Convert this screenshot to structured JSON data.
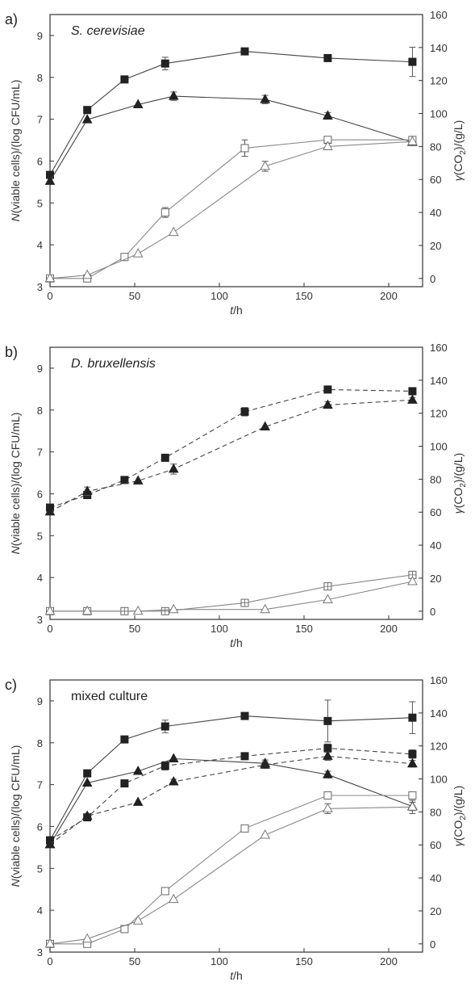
{
  "chart_data": [
    {
      "type": "line",
      "panel_label": "a)",
      "title": "S. cerevisiae",
      "title_italic": true,
      "xlabel": "t/h",
      "ylabel_left": "N(viable cells)/(log CFU/mL)",
      "ylabel_right": "γ(CO2)/(g/L)",
      "xlim": [
        0,
        220
      ],
      "xticks": [
        0,
        50,
        100,
        150,
        200
      ],
      "ylim_left": [
        3,
        9.5
      ],
      "yticks_left": [
        3,
        4,
        5,
        6,
        7,
        8,
        9
      ],
      "ylim_right": [
        -5,
        160
      ],
      "yticks_right": [
        0,
        20,
        40,
        60,
        80,
        100,
        120,
        140,
        160
      ],
      "grid": false,
      "series": [
        {
          "marker": "square-filled",
          "axis": "left",
          "line": "solid",
          "x": [
            0,
            22,
            44,
            68,
            115,
            164,
            214
          ],
          "y": [
            5.67,
            7.22,
            7.95,
            8.33,
            8.62,
            8.46,
            8.37
          ],
          "err": [
            0,
            0,
            0,
            0.15,
            0,
            0,
            0.35
          ]
        },
        {
          "marker": "triangle-filled",
          "axis": "left",
          "line": "solid",
          "x": [
            0,
            22,
            52,
            73,
            127,
            164,
            214
          ],
          "y": [
            5.52,
            6.99,
            7.35,
            7.55,
            7.47,
            7.08,
            6.45
          ],
          "err": [
            0,
            0,
            0,
            0.1,
            0.1,
            0.08,
            0
          ]
        },
        {
          "marker": "square-open",
          "axis": "right",
          "line": "solid",
          "x": [
            0,
            22,
            44,
            68,
            115,
            164,
            214
          ],
          "y": [
            0,
            0,
            13,
            40,
            79,
            84,
            84
          ],
          "err": [
            0,
            0,
            0,
            3,
            5,
            0,
            0
          ]
        },
        {
          "marker": "triangle-open",
          "axis": "right",
          "line": "solid",
          "x": [
            0,
            22,
            52,
            73,
            127,
            164,
            214
          ],
          "y": [
            0,
            2,
            15,
            28,
            68,
            80,
            83
          ],
          "err": [
            0,
            0,
            0,
            0,
            3,
            2,
            0
          ]
        }
      ]
    },
    {
      "type": "line",
      "panel_label": "b)",
      "title": "D. bruxellensis",
      "title_italic": true,
      "xlabel": "t/h",
      "ylabel_left": "N(viable cells)/(log CFU/mL)",
      "ylabel_right": "γ(CO2)/(g/L)",
      "xlim": [
        0,
        220
      ],
      "xticks": [
        0,
        50,
        100,
        150,
        200
      ],
      "ylim_left": [
        3,
        9.5
      ],
      "yticks_left": [
        3,
        4,
        5,
        6,
        7,
        8,
        9
      ],
      "ylim_right": [
        -5,
        160
      ],
      "yticks_right": [
        0,
        20,
        40,
        60,
        80,
        100,
        120,
        140,
        160
      ],
      "grid": false,
      "series": [
        {
          "marker": "square-filled",
          "axis": "left",
          "line": "dashed",
          "x": [
            0,
            22,
            44,
            68,
            115,
            164,
            214
          ],
          "y": [
            5.67,
            5.97,
            6.33,
            6.86,
            7.96,
            8.49,
            8.45
          ],
          "err": [
            0,
            0.06,
            0,
            0,
            0.1,
            0,
            0
          ]
        },
        {
          "marker": "triangle-filled",
          "axis": "left",
          "line": "dashed",
          "x": [
            0,
            22,
            52,
            73,
            127,
            164,
            214
          ],
          "y": [
            5.57,
            6.06,
            6.31,
            6.59,
            7.6,
            8.12,
            8.24
          ],
          "err": [
            0,
            0.1,
            0,
            0.12,
            0,
            0.08,
            0.06
          ]
        },
        {
          "marker": "square-cross",
          "axis": "right",
          "line": "solid",
          "x": [
            0,
            22,
            44,
            68,
            115,
            164,
            214
          ],
          "y": [
            0,
            0,
            0,
            0,
            5,
            15,
            22
          ],
          "err": [
            0,
            0,
            0,
            0,
            0,
            0,
            0
          ]
        },
        {
          "marker": "triangle-open",
          "axis": "right",
          "line": "solid",
          "x": [
            0,
            22,
            52,
            73,
            127,
            164,
            214
          ],
          "y": [
            0,
            0,
            0,
            1,
            1,
            7,
            18
          ],
          "err": [
            0,
            0,
            0,
            0,
            0,
            0,
            0
          ]
        }
      ]
    },
    {
      "type": "line",
      "panel_label": "c)",
      "title": "mixed culture",
      "title_italic": false,
      "xlabel": "t/h",
      "ylabel_left": "N(viable cells)/(log CFU/mL)",
      "ylabel_right": "γ(CO2)/(g/L)",
      "xlim": [
        0,
        220
      ],
      "xticks": [
        0,
        50,
        100,
        150,
        200
      ],
      "ylim_left": [
        3,
        9.5
      ],
      "yticks_left": [
        3,
        4,
        5,
        6,
        7,
        8,
        9
      ],
      "ylim_right": [
        -5,
        160
      ],
      "yticks_right": [
        0,
        20,
        40,
        60,
        80,
        100,
        120,
        140,
        160
      ],
      "grid": false,
      "series": [
        {
          "marker": "square-filled",
          "axis": "left",
          "line": "solid",
          "x": [
            0,
            22,
            44,
            68,
            115,
            164,
            214
          ],
          "y": [
            5.67,
            7.27,
            8.08,
            8.39,
            8.64,
            8.52,
            8.6
          ],
          "err": [
            0,
            0,
            0,
            0.15,
            0,
            0.5,
            0.38
          ]
        },
        {
          "marker": "triangle-filled",
          "axis": "left",
          "line": "solid",
          "x": [
            0,
            22,
            52,
            73,
            127,
            164,
            214
          ],
          "y": [
            5.57,
            7.04,
            7.32,
            7.62,
            7.51,
            7.24,
            6.48
          ],
          "err": [
            0,
            0,
            0,
            0,
            0.08,
            0.08,
            0.1
          ]
        },
        {
          "marker": "square-filled",
          "axis": "left",
          "line": "dashed",
          "x": [
            0,
            22,
            44,
            68,
            115,
            164,
            214
          ],
          "y": [
            5.67,
            6.22,
            7.03,
            7.45,
            7.68,
            7.87,
            7.73
          ],
          "err": [
            0,
            0.06,
            0,
            0.1,
            0.08,
            0.1,
            0.1
          ]
        },
        {
          "marker": "triangle-filled",
          "axis": "left",
          "line": "dashed",
          "x": [
            0,
            22,
            52,
            73,
            127,
            164,
            214
          ],
          "y": [
            5.57,
            6.25,
            6.58,
            7.07,
            7.47,
            7.68,
            7.5
          ],
          "err": [
            0,
            0.06,
            0,
            0.06,
            0.08,
            0.1,
            0.08
          ]
        },
        {
          "marker": "square-open",
          "axis": "right",
          "line": "solid",
          "x": [
            0,
            22,
            44,
            68,
            115,
            164,
            214
          ],
          "y": [
            0,
            0,
            9,
            32,
            70,
            90,
            90
          ],
          "err": [
            0,
            0,
            0,
            0,
            0,
            0,
            0
          ]
        },
        {
          "marker": "triangle-open",
          "axis": "right",
          "line": "solid",
          "x": [
            0,
            22,
            52,
            73,
            127,
            164,
            214
          ],
          "y": [
            0,
            3,
            14,
            27,
            66,
            82,
            83
          ],
          "err": [
            0,
            0,
            0,
            0,
            0,
            3,
            4
          ]
        }
      ]
    }
  ]
}
